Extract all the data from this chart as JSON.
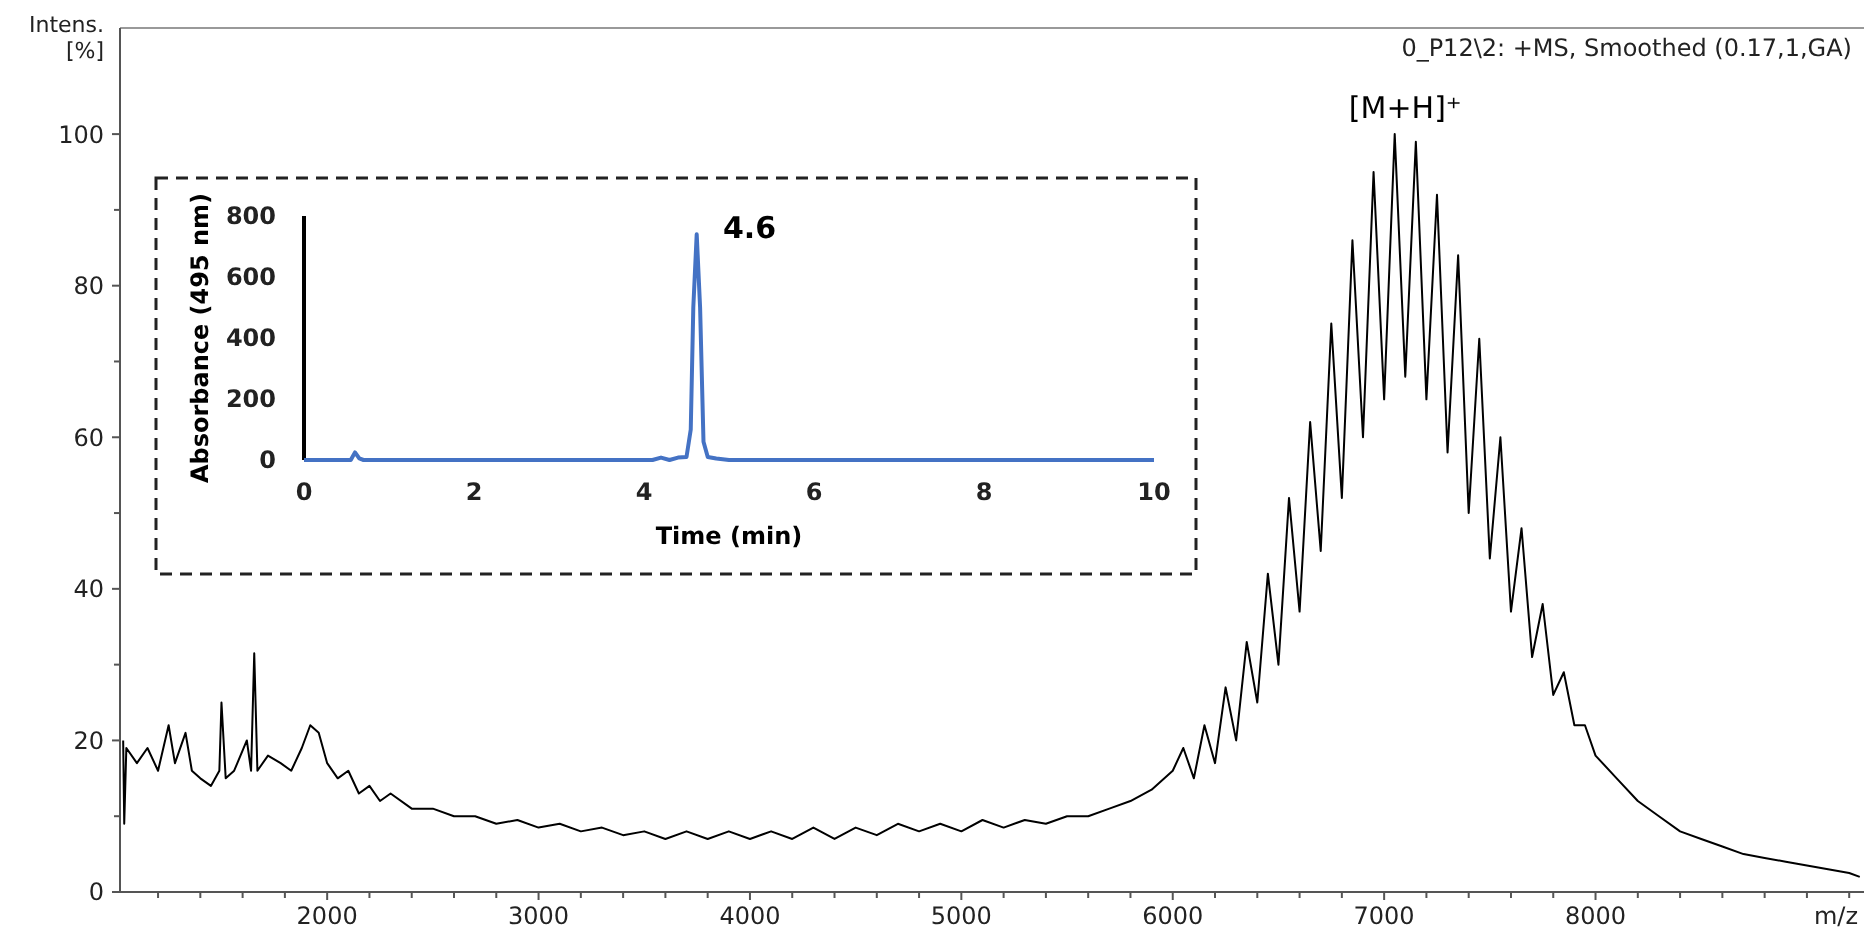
{
  "chart_data": [
    {
      "type": "line",
      "xlabel": "m/z",
      "ylabel": "Intens.\n[%]",
      "xlim": [
        1020,
        9270
      ],
      "ylim": [
        0,
        114
      ],
      "xticks": [
        {
          "value": 1200,
          "label": null
        },
        {
          "value": 1400,
          "label": null
        },
        {
          "value": 1600,
          "label": null
        },
        {
          "value": 1800,
          "label": null
        },
        2000,
        {
          "value": 2200,
          "label": null
        },
        {
          "value": 2400,
          "label": null
        },
        {
          "value": 2600,
          "label": null
        },
        {
          "value": 2800,
          "label": null
        },
        3000,
        {
          "value": 3200,
          "label": null
        },
        {
          "value": 3400,
          "label": null
        },
        {
          "value": 3600,
          "label": null
        },
        {
          "value": 3800,
          "label": null
        },
        4000,
        {
          "value": 4200,
          "label": null
        },
        {
          "value": 4400,
          "label": null
        },
        {
          "value": 4600,
          "label": null
        },
        {
          "value": 4800,
          "label": null
        },
        5000,
        {
          "value": 5200,
          "label": null
        },
        {
          "value": 5400,
          "label": null
        },
        {
          "value": 5600,
          "label": null
        },
        {
          "value": 5800,
          "label": null
        },
        6000,
        {
          "value": 6200,
          "label": null
        },
        {
          "value": 6400,
          "label": null
        },
        {
          "value": 6600,
          "label": null
        },
        {
          "value": 6800,
          "label": null
        },
        7000,
        {
          "value": 7200,
          "label": null
        },
        {
          "value": 7400,
          "label": null
        },
        {
          "value": 7600,
          "label": null
        },
        {
          "value": 7800,
          "label": null
        },
        8000,
        {
          "value": 8200,
          "label": null
        },
        {
          "value": 8400,
          "label": null
        },
        {
          "value": 8600,
          "label": null
        },
        {
          "value": 8800,
          "label": null
        },
        {
          "value": 9000,
          "label": null
        },
        {
          "value": 9200,
          "label": null
        }
      ],
      "yticks": [
        0,
        {
          "value": 10,
          "label": null
        },
        20,
        {
          "value": 30,
          "label": null
        },
        40,
        {
          "value": 50,
          "label": null
        },
        60,
        {
          "value": 70,
          "label": null
        },
        80,
        {
          "value": 90,
          "label": null
        },
        100
      ],
      "series": [
        {
          "color": "#000000",
          "x": [
            1035,
            1040,
            1050,
            1100,
            1150,
            1200,
            1250,
            1280,
            1330,
            1360,
            1400,
            1450,
            1490,
            1500,
            1520,
            1560,
            1620,
            1640,
            1655,
            1670,
            1720,
            1780,
            1830,
            1880,
            1920,
            1960,
            2000,
            2050,
            2100,
            2150,
            2200,
            2250,
            2300,
            2400,
            2500,
            2600,
            2700,
            2800,
            2900,
            3000,
            3100,
            3200,
            3300,
            3400,
            3500,
            3600,
            3700,
            3800,
            3900,
            4000,
            4100,
            4200,
            4300,
            4400,
            4500,
            4600,
            4700,
            4800,
            4900,
            5000,
            5100,
            5200,
            5300,
            5400,
            5500,
            5600,
            5700,
            5800,
            5900,
            6000,
            6050,
            6100,
            6150,
            6200,
            6250,
            6300,
            6350,
            6400,
            6450,
            6500,
            6550,
            6600,
            6650,
            6700,
            6750,
            6800,
            6850,
            6900,
            6950,
            7000,
            7050,
            7100,
            7150,
            7200,
            7250,
            7300,
            7350,
            7400,
            7450,
            7500,
            7550,
            7600,
            7650,
            7700,
            7750,
            7800,
            7850,
            7900,
            7950,
            8000,
            8100,
            8200,
            8300,
            8400,
            8500,
            8600,
            8700,
            8800,
            8900,
            9000,
            9100,
            9200,
            9250
          ],
          "values": [
            20,
            9,
            19,
            17,
            19,
            16,
            22,
            17,
            21,
            16,
            15,
            14,
            16,
            25,
            15,
            16,
            20,
            16,
            31.5,
            16,
            18,
            17,
            16,
            19,
            22,
            21,
            17,
            15,
            16,
            13,
            14,
            12,
            13,
            11,
            11,
            10,
            10,
            9,
            9.5,
            8.5,
            9,
            8,
            8.5,
            7.5,
            8,
            7,
            8,
            7,
            8,
            7,
            8,
            7,
            8.5,
            7,
            8.5,
            7.5,
            9,
            8,
            9,
            8,
            9.5,
            8.5,
            9.5,
            9,
            10,
            10,
            11,
            12,
            13.5,
            16,
            19,
            15,
            22,
            17,
            27,
            20,
            33,
            25,
            42,
            30,
            52,
            37,
            62,
            45,
            75,
            52,
            86,
            60,
            95,
            65,
            100,
            68,
            99,
            65,
            92,
            58,
            84,
            50,
            73,
            44,
            60,
            37,
            48,
            31,
            38,
            26,
            29,
            22,
            22,
            18,
            15,
            12,
            10,
            8,
            7,
            6,
            5,
            4.5,
            4,
            3.5,
            3,
            2.5,
            2
          ]
        }
      ],
      "annotations": [
        "0_P12\\2: +MS, Smoothed (0.17,1,GA)",
        {
          "text": "[M+H]⁺",
          "x": 7100,
          "y": 100
        }
      ]
    },
    {
      "type": "line",
      "xlabel": "Time (min)",
      "ylabel": "Absorbance (495 nm)",
      "xlim": [
        0,
        10
      ],
      "ylim": [
        0,
        800
      ],
      "xticks": [
        0,
        2,
        4,
        6,
        8,
        10
      ],
      "yticks": [
        0,
        200,
        400,
        600,
        800
      ],
      "series": [
        {
          "color": "#4472c4",
          "x": [
            0,
            0.55,
            0.6,
            0.65,
            0.7,
            4.1,
            4.2,
            4.3,
            4.4,
            4.5,
            4.55,
            4.58,
            4.62,
            4.66,
            4.7,
            4.75,
            4.85,
            5,
            10
          ],
          "values": [
            0,
            0,
            25,
            5,
            0,
            0,
            8,
            0,
            8,
            10,
            100,
            500,
            740,
            500,
            60,
            10,
            5,
            0,
            0
          ]
        }
      ],
      "annotations": [
        {
          "text": "4.6",
          "x": 4.6,
          "y": 740
        }
      ]
    }
  ]
}
